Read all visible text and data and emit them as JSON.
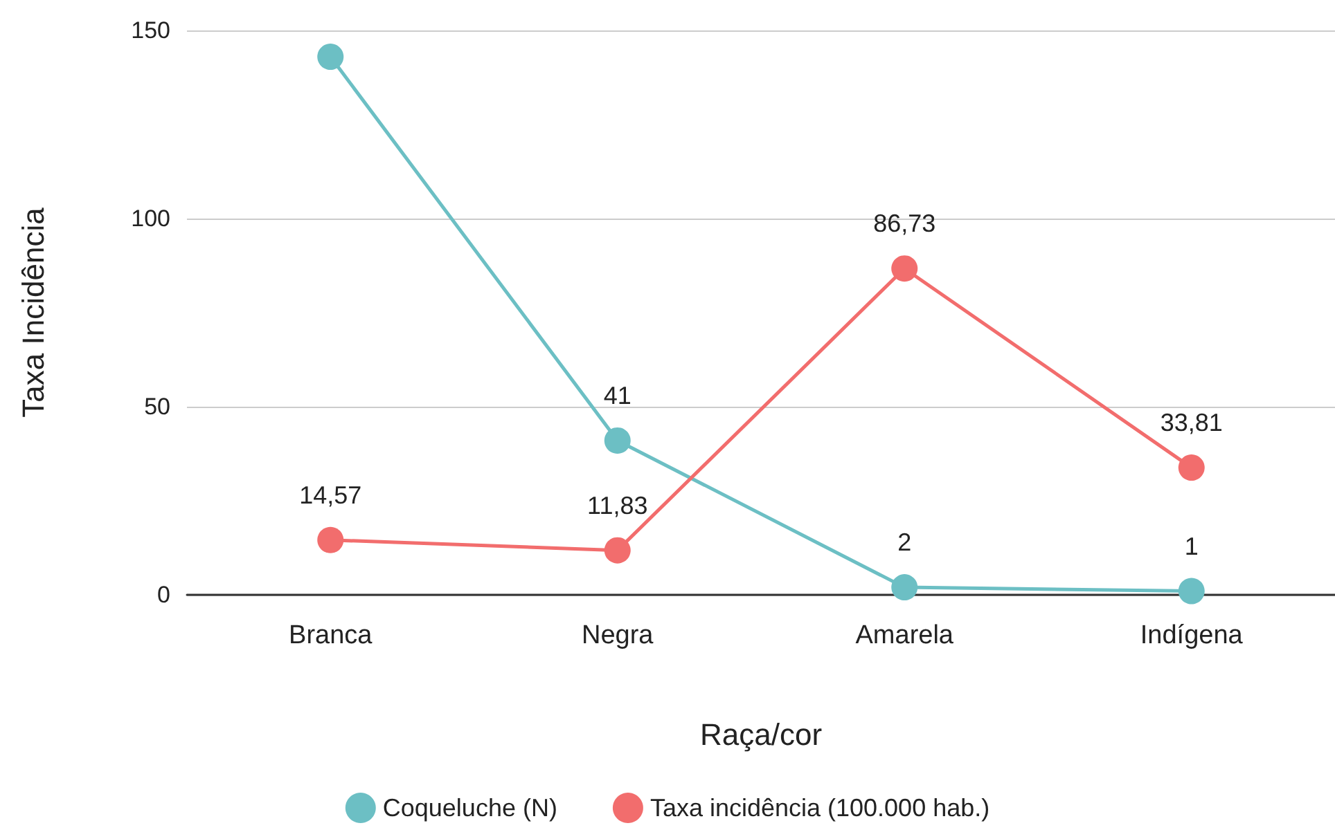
{
  "chart_data": {
    "type": "line",
    "xlabel": "Raça/cor",
    "ylabel": "Taxa Incidência",
    "categories": [
      "Branca",
      "Negra",
      "Amarela",
      "Indígena"
    ],
    "series": [
      {
        "name": "Coqueluche (N)",
        "color": "#6cbfc4",
        "values": [
          143,
          41,
          2,
          1
        ],
        "value_labels": [
          null,
          "41",
          "2",
          "1"
        ]
      },
      {
        "name": "Taxa incidência (100.000 hab.)",
        "color": "#f26d6d",
        "values": [
          14.57,
          11.83,
          86.73,
          33.81
        ],
        "value_labels": [
          "14,57",
          "11,83",
          "86,73",
          "33,81"
        ]
      }
    ],
    "ylim": [
      0,
      150
    ],
    "yticks": [
      0,
      50,
      100,
      150
    ],
    "grid": "y",
    "legend": "bottom",
    "marker": "circle",
    "line_style": "solid"
  }
}
